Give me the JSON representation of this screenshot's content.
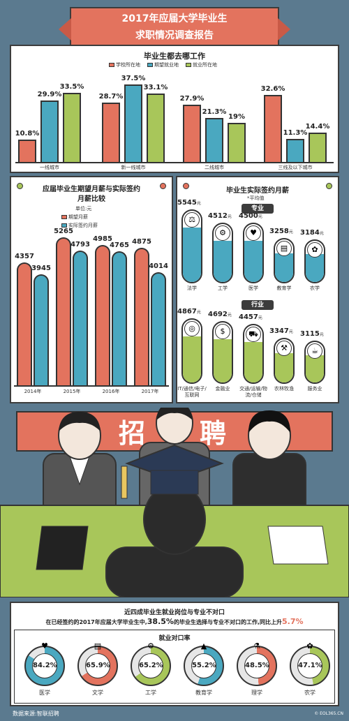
{
  "header": {
    "title_line1": "2017年应届大学毕业生",
    "title_line2": "求职情况调查报告"
  },
  "colors": {
    "red": "#e3735e",
    "blue": "#4aa8c0",
    "green": "#a8c65a",
    "dark": "#3c3c3c"
  },
  "chart1": {
    "chart_data": {
      "type": "bar",
      "title": "毕业生都去哪工作",
      "categories": [
        "一线城市",
        "新一线城市",
        "二线城市",
        "三线及以下城市"
      ],
      "series": [
        {
          "name": "学校所在地",
          "values": [
            10.8,
            28.7,
            27.9,
            32.6
          ],
          "labels": [
            "10.8%",
            "28.7%",
            "27.9%",
            "32.6%"
          ]
        },
        {
          "name": "期望就业地",
          "values": [
            29.9,
            37.5,
            21.3,
            11.3
          ],
          "labels": [
            "29.9%",
            "37.5%",
            "21.3%",
            "11.3%"
          ]
        },
        {
          "name": "就业所在地",
          "values": [
            33.5,
            33.1,
            19.0,
            14.4
          ],
          "labels": [
            "33.5%",
            "33.1%",
            "19%",
            "14.4%"
          ]
        }
      ],
      "ylim": [
        0,
        40
      ]
    }
  },
  "chart2": {
    "unit": "单位:元",
    "chart_data": {
      "type": "bar",
      "title": "应届毕业生期望月薪与实际签约月薪比较",
      "title_line1": "应届毕业生期望月薪与实际签约",
      "title_line2": "月薪比较",
      "categories": [
        "2014年",
        "2015年",
        "2016年",
        "2017年"
      ],
      "series": [
        {
          "name": "期望月薪",
          "values": [
            4357,
            5265,
            4985,
            4875
          ]
        },
        {
          "name": "实际签约月薪",
          "values": [
            3945,
            4793,
            4765,
            4014
          ]
        }
      ],
      "ylim": [
        0,
        5600
      ]
    }
  },
  "chart3": {
    "title": "毕业生实际签约月薪",
    "note": "*平均值",
    "unit": "元",
    "chart_data": {
      "type": "bar",
      "title": "毕业生实际签约月薪",
      "groups": [
        {
          "name": "专业",
          "categories": [
            "法学",
            "工学",
            "医学",
            "教育学",
            "农学"
          ],
          "values": [
            5545,
            4512,
            4500,
            3258,
            3184
          ],
          "icons": [
            "scales-icon",
            "gear-icon",
            "stethoscope-icon",
            "book-icon",
            "wheat-icon"
          ]
        },
        {
          "name": "行业",
          "categories": [
            "IT/通信/电子/互联网",
            "金融业",
            "交通/运输/物流/仓储",
            "农林牧渔",
            "服务业"
          ],
          "values": [
            4867,
            4692,
            4457,
            3347,
            3115
          ],
          "icons": [
            "globe-icon",
            "coins-icon",
            "truck-icon",
            "tractor-icon",
            "service-icon"
          ]
        }
      ],
      "ylim": [
        0,
        6000
      ]
    }
  },
  "banner": {
    "chars": [
      "招",
      "聘"
    ]
  },
  "mismatch": {
    "title": "近四成毕业生就业岗位与专业不对口",
    "sentence_pre": "在已经签约的2017年应届大学毕业生中,",
    "sentence_pct": "38.5%",
    "sentence_mid": "的毕业生选择与专业不对口的工作,同比上升",
    "sentence_rise": "5.7%"
  },
  "chart4": {
    "chart_data": {
      "type": "pie",
      "title": "就业对口率",
      "categories": [
        "医学",
        "文学",
        "工学",
        "教育学",
        "理学",
        "农学"
      ],
      "values": [
        84.2,
        65.9,
        65.2,
        55.2,
        48.5,
        47.1
      ],
      "labels": [
        "84.2%",
        "65.9%",
        "65.2%",
        "55.2%",
        "48.5%",
        "47.1%"
      ],
      "colors": [
        "#4aa8c0",
        "#e3735e",
        "#a8c65a",
        "#4aa8c0",
        "#e3735e",
        "#a8c65a"
      ],
      "icons": [
        "stethoscope-icon",
        "book-icon",
        "gear-icon",
        "mortarboard-icon",
        "flask-icon",
        "wheat-icon"
      ]
    }
  },
  "footer": {
    "source": "数据来源:智联招聘",
    "credit": "© EOL365.CN"
  }
}
